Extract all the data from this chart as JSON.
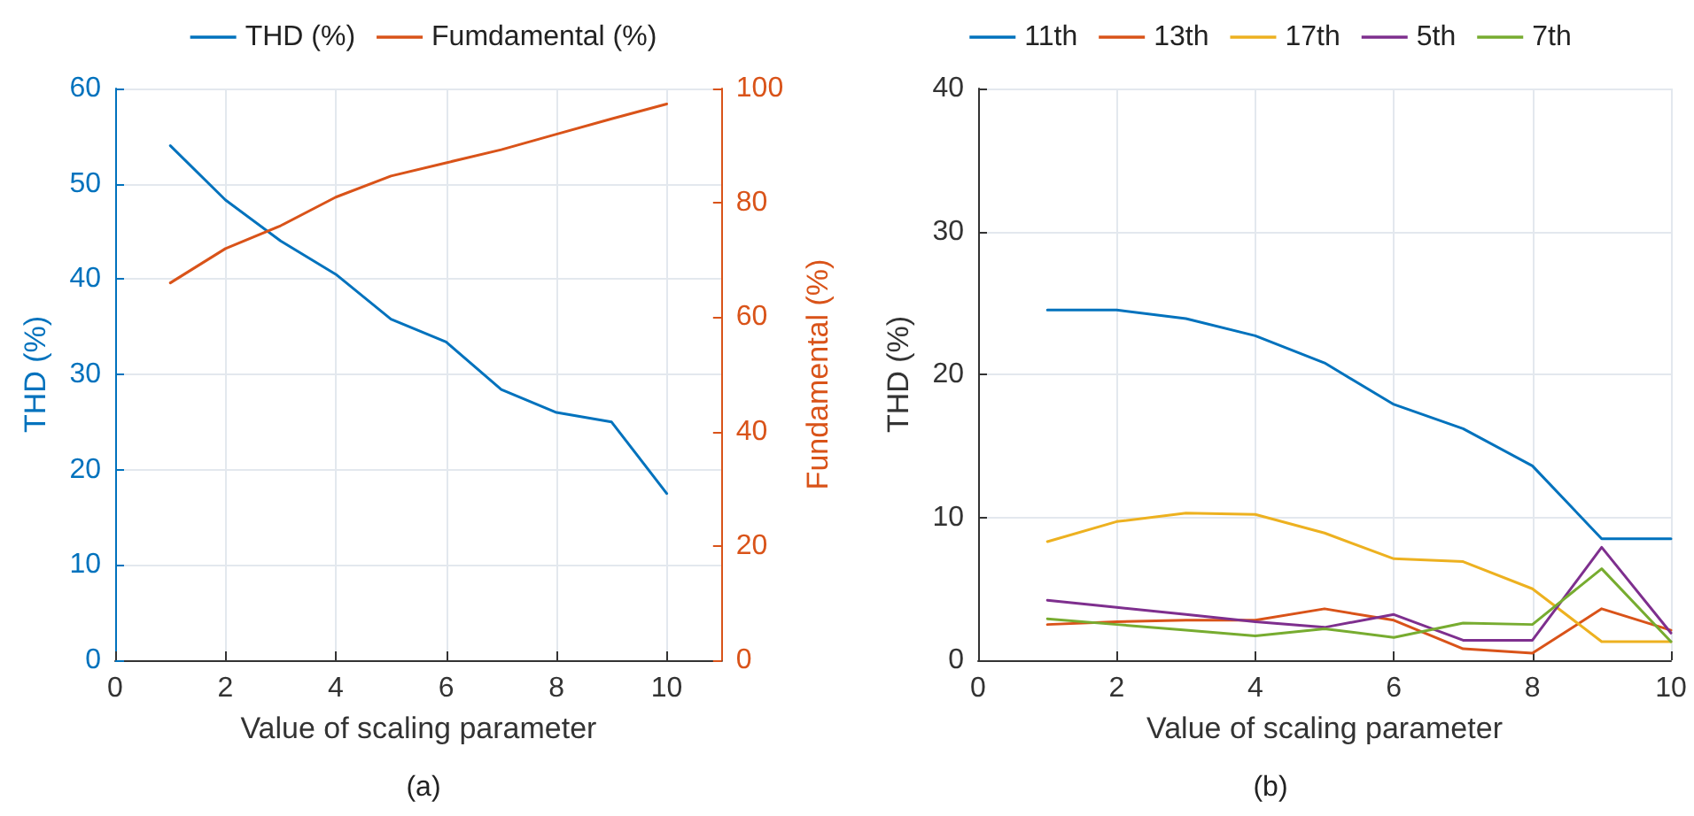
{
  "chart_data": [
    {
      "type": "line",
      "xlabel": "Value of scaling parameter",
      "ylabel": "THD (%)",
      "y2label": "Fundamental (%)",
      "annotations": [
        "(a)"
      ],
      "x": [
        1,
        2,
        3,
        4,
        5,
        6,
        7,
        8,
        9,
        10
      ],
      "series": [
        {
          "name": "THD (%)",
          "color": "#0072bd",
          "values": [
            54,
            48.3,
            44,
            40.5,
            35.8,
            33.4,
            28.4,
            26,
            25,
            17.5
          ]
        },
        {
          "name": "Fumdamental (%)",
          "color": "#d95319",
          "axis": "y2",
          "values": [
            66,
            72,
            76,
            81,
            84.7,
            87,
            89.3,
            92,
            94.7,
            97.3
          ]
        }
      ],
      "xlim": [
        0,
        11
      ],
      "xticks": [
        0,
        2,
        4,
        6,
        8,
        10
      ],
      "ylim": [
        0,
        60
      ],
      "yticks": [
        0,
        10,
        20,
        30,
        40,
        50,
        60
      ],
      "y2lim": [
        0,
        100
      ],
      "y2ticks": [
        0,
        20,
        40,
        60,
        80,
        100
      ],
      "grid": true,
      "legend": "top",
      "marker": "none",
      "line_style": "solid"
    },
    {
      "type": "line",
      "xlabel": "Value of scaling parameter",
      "ylabel": "THD (%)",
      "annotations": [
        "(b)"
      ],
      "x": [
        1,
        2,
        3,
        4,
        5,
        6,
        7,
        8,
        9,
        10
      ],
      "series": [
        {
          "name": "11th",
          "color": "#0072bd",
          "values": [
            24.5,
            24.5,
            23.9,
            22.7,
            20.8,
            17.9,
            16.2,
            13.6,
            8.5,
            8.5
          ]
        },
        {
          "name": "13th",
          "color": "#d95319",
          "values": [
            2.5,
            2.7,
            2.8,
            2.8,
            3.6,
            2.8,
            0.8,
            0.5,
            3.6,
            2.1
          ]
        },
        {
          "name": "17th",
          "color": "#edb120",
          "values": [
            8.3,
            9.7,
            10.3,
            10.2,
            8.9,
            7.1,
            6.9,
            5,
            1.3,
            1.3
          ]
        },
        {
          "name": "5th",
          "color": "#7e2f8e",
          "values": [
            4.2,
            3.7,
            3.2,
            2.7,
            2.3,
            3.2,
            1.4,
            1.4,
            7.9,
            1.9
          ]
        },
        {
          "name": "7th",
          "color": "#77ac30",
          "values": [
            2.9,
            2.5,
            2.1,
            1.7,
            2.2,
            1.6,
            2.6,
            2.5,
            6.4,
            1.3
          ]
        }
      ],
      "xlim": [
        0,
        10
      ],
      "xticks": [
        0,
        2,
        4,
        6,
        8,
        10
      ],
      "ylim": [
        0,
        40
      ],
      "yticks": [
        0,
        10,
        20,
        30,
        40
      ],
      "grid": true,
      "legend": "top",
      "marker": "none",
      "line_style": "solid"
    }
  ]
}
